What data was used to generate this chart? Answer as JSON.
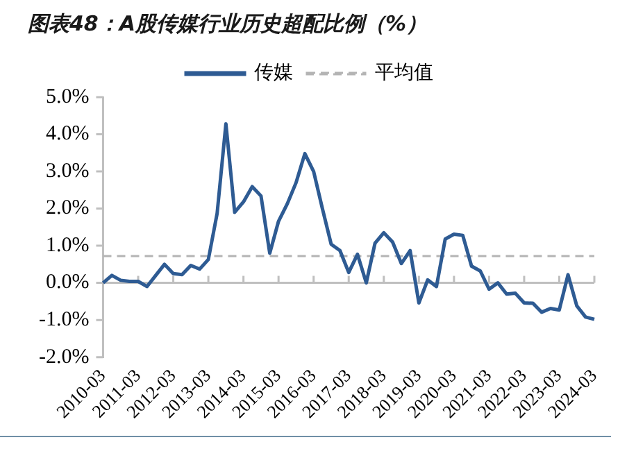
{
  "chart_data": {
    "type": "line",
    "title": "图表48：A股传媒行业历史超配比例（%）",
    "categories": [
      "2010-03",
      null,
      null,
      null,
      "2011-03",
      null,
      null,
      null,
      "2012-03",
      null,
      null,
      null,
      "2013-03",
      null,
      null,
      null,
      "2014-03",
      null,
      null,
      null,
      "2015-03",
      null,
      null,
      null,
      "2016-03",
      null,
      null,
      null,
      "2017-03",
      null,
      null,
      null,
      "2018-03",
      null,
      null,
      null,
      "2019-03",
      null,
      null,
      null,
      "2020-03",
      null,
      null,
      null,
      "2021-03",
      null,
      null,
      null,
      "2022-03",
      null,
      null,
      null,
      "2023-03",
      null,
      null,
      null,
      "2024-03"
    ],
    "series": [
      {
        "name": "传媒",
        "color": "#2e5b93",
        "values": [
          0.0,
          0.2,
          0.07,
          0.04,
          0.04,
          -0.1,
          0.2,
          0.5,
          0.25,
          0.22,
          0.47,
          0.37,
          0.63,
          1.87,
          4.28,
          1.9,
          2.18,
          2.59,
          2.34,
          0.8,
          1.66,
          2.13,
          2.7,
          3.48,
          3.0,
          2.0,
          1.04,
          0.87,
          0.28,
          0.77,
          0.0,
          1.07,
          1.35,
          1.1,
          0.52,
          0.87,
          -0.54,
          0.08,
          -0.1,
          1.18,
          1.31,
          1.28,
          0.45,
          0.32,
          -0.17,
          0.0,
          -0.3,
          -0.28,
          -0.54,
          -0.55,
          -0.79,
          -0.69,
          -0.73,
          0.22,
          -0.62,
          -0.92,
          -0.98
        ]
      }
    ],
    "ref_lines": [
      {
        "axis": "y",
        "value": 0.72,
        "label": "平均值",
        "color": "#b4b4b4",
        "line_style": "dashed"
      },
      {
        "axis": "y",
        "value": 0,
        "color": "#bfbfbf",
        "line_style": "solid"
      }
    ],
    "ylim": [
      -2,
      5
    ],
    "yticks": [
      {
        "value": -2,
        "label": "-2.0%"
      },
      {
        "value": -1,
        "label": "-1.0%"
      },
      {
        "value": 0,
        "label": "0.0%"
      },
      {
        "value": 1,
        "label": "1.0%"
      },
      {
        "value": 2,
        "label": "2.0%"
      },
      {
        "value": 3,
        "label": "3.0%"
      },
      {
        "value": 4,
        "label": "4.0%"
      },
      {
        "value": 5,
        "label": "5.0%"
      }
    ],
    "grid": false,
    "legend": "top",
    "marker": "none",
    "line_style": "solid"
  }
}
